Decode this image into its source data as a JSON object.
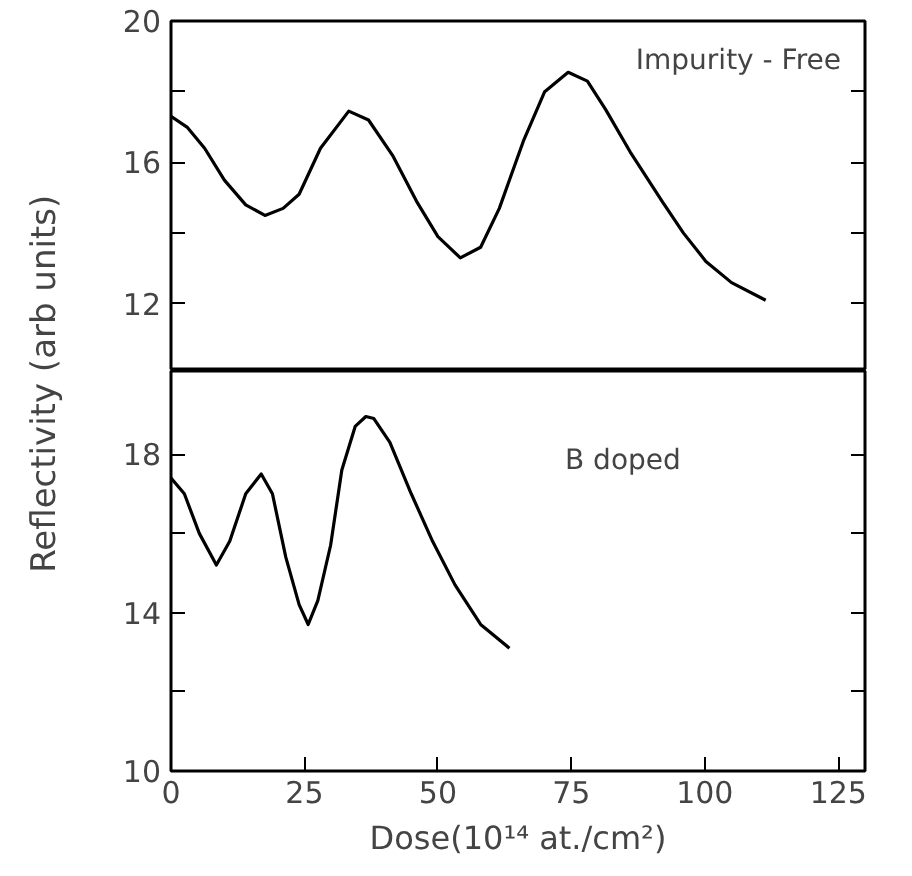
{
  "chart_data": [
    {
      "type": "line",
      "ylabel": "Reflectivity (arb units)",
      "annotations": [
        "Impurity - Free"
      ],
      "tick_labels": "y",
      "xlim": [
        0,
        130
      ],
      "xticks": [
        0,
        25,
        50,
        75,
        100,
        125
      ],
      "ylim": [
        10.1,
        20
      ],
      "yticks": [
        {
          "value": 12,
          "label": "12"
        },
        {
          "value": 14,
          "label": null
        },
        {
          "value": 16,
          "label": "16"
        },
        {
          "value": 18,
          "label": null
        },
        {
          "value": 20,
          "label": "20"
        }
      ],
      "series": [
        {
          "color": "#000000",
          "x": [
            0,
            3,
            6.3,
            10,
            14,
            17.6,
            21,
            24,
            28,
            33.3,
            37,
            41.5,
            46,
            50,
            54.2,
            58,
            61.5,
            66,
            70,
            74.4,
            78,
            81.4,
            86,
            92,
            96,
            100.2,
            105,
            111.4
          ],
          "values": [
            17.3,
            17.0,
            16.4,
            15.5,
            14.8,
            14.5,
            14.7,
            15.1,
            16.4,
            17.45,
            17.2,
            16.2,
            14.9,
            13.9,
            13.3,
            13.6,
            14.7,
            16.6,
            18.0,
            18.55,
            18.3,
            17.5,
            16.3,
            14.9,
            14.0,
            13.2,
            12.6,
            12.1
          ]
        }
      ]
    },
    {
      "type": "line",
      "xlabel": "Dose(10¹⁴ at./cm²)",
      "annotations": [
        "B doped"
      ],
      "xlim": [
        0,
        130
      ],
      "xticks": [
        0,
        25,
        50,
        75,
        100,
        125
      ],
      "ylim": [
        10,
        20.1
      ],
      "yticks": [
        {
          "value": 10,
          "label": "10"
        },
        {
          "value": 12,
          "label": null
        },
        {
          "value": 14,
          "label": "14"
        },
        {
          "value": 16,
          "label": null
        },
        {
          "value": 18,
          "label": "18"
        }
      ],
      "series": [
        {
          "color": "#000000",
          "x": [
            0,
            2.5,
            5.3,
            8.5,
            11,
            14,
            16.9,
            19,
            21.5,
            24,
            25.7,
            27.5,
            29.9,
            32,
            34.5,
            36.5,
            38,
            41,
            45,
            49,
            53.2,
            58,
            63.4
          ],
          "values": [
            17.4,
            17.0,
            16.0,
            15.2,
            15.8,
            17.0,
            17.5,
            17.0,
            15.4,
            14.2,
            13.7,
            14.3,
            15.7,
            17.6,
            18.7,
            18.95,
            18.9,
            18.3,
            17.0,
            15.8,
            14.7,
            13.7,
            13.1
          ]
        }
      ]
    }
  ]
}
